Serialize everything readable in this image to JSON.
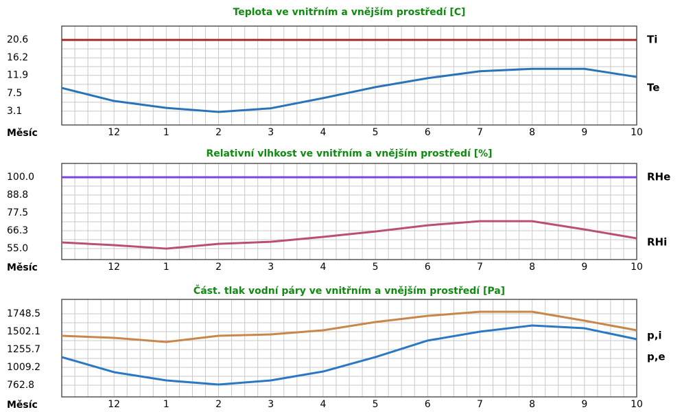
{
  "chart_data": [
    {
      "type": "line",
      "title": "Teplota ve vnitřním a vnějším prostředí [C]",
      "xlabel": "Měsíc",
      "categories": [
        null,
        "12",
        "1",
        "2",
        "3",
        "4",
        "5",
        "6",
        "7",
        "8",
        "9",
        "10"
      ],
      "ylim": [
        -0.3,
        24.0
      ],
      "yticks": [
        20.6,
        16.2,
        11.9,
        7.5,
        3.1
      ],
      "grid": true,
      "series": [
        {
          "name": "Ti",
          "color": "#a52a2a",
          "values": [
            20.6,
            20.6,
            20.6,
            20.6,
            20.6,
            20.6,
            20.6,
            20.6,
            20.6,
            20.6,
            20.6,
            20.6
          ]
        },
        {
          "name": "Te",
          "color": "#2a73b8",
          "values": [
            8.8,
            5.6,
            3.9,
            2.9,
            3.8,
            6.3,
            9.0,
            11.2,
            12.9,
            13.5,
            13.5,
            11.5
          ]
        }
      ]
    },
    {
      "type": "line",
      "title": "Relativní vlhkost ve vnitřním a vnějším prostředí [%]",
      "xlabel": "Měsíc",
      "categories": [
        null,
        "12",
        "1",
        "2",
        "3",
        "4",
        "5",
        "6",
        "7",
        "8",
        "9",
        "10"
      ],
      "ylim": [
        48.1,
        108.7
      ],
      "yticks": [
        {
          "value": 100,
          "label": "100.0"
        },
        88.8,
        77.5,
        66.3,
        {
          "value": 55,
          "label": "55.0"
        }
      ],
      "grid": true,
      "series": [
        {
          "name": "RHe",
          "color": "#7a45e0",
          "values": [
            100,
            100,
            100,
            100,
            100,
            100,
            100,
            100,
            100,
            100,
            100,
            100
          ]
        },
        {
          "name": "RHi",
          "color": "#b8506e",
          "values": [
            58.9,
            57.2,
            55.0,
            58.0,
            59.3,
            62.4,
            65.8,
            69.7,
            72.3,
            72.3,
            67.1,
            61.5
          ]
        }
      ]
    },
    {
      "type": "line",
      "title": "Část. tlak vodní páry ve vnitřním a vnějším prostředí [Pa]",
      "xlabel": "Měsíc",
      "categories": [
        null,
        "12",
        "1",
        "2",
        "3",
        "4",
        "5",
        "6",
        "7",
        "8",
        "9",
        "10"
      ],
      "ylim": [
        601.7,
        1947.5
      ],
      "yticks": [
        1748.5,
        1502.1,
        1255.7,
        1009.2,
        762.8
      ],
      "grid": true,
      "series": [
        {
          "name": "p,i",
          "color": "#c8864a",
          "values": [
            1445,
            1417,
            1360,
            1445,
            1464,
            1521,
            1635,
            1720,
            1777,
            1777,
            1654,
            1521
          ]
        },
        {
          "name": "p,e",
          "color": "#2a78c4",
          "values": [
            1151,
            943,
            829,
            772,
            829,
            952,
            1151,
            1379,
            1502,
            1587,
            1549,
            1398
          ]
        }
      ]
    }
  ]
}
